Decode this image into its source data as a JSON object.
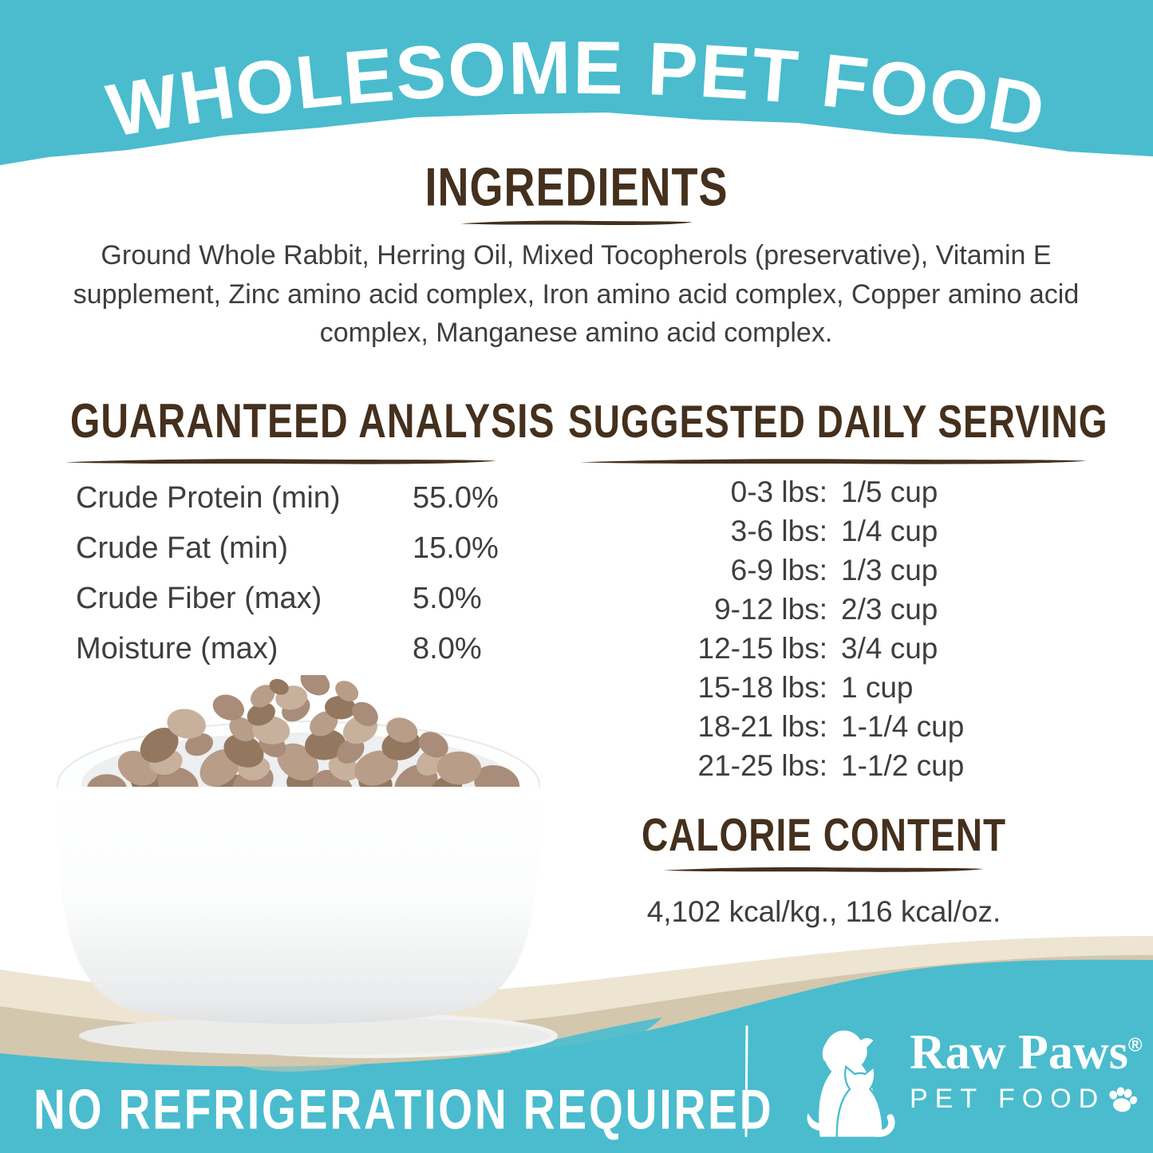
{
  "header": {
    "title": "WHOLESOME PET FOOD"
  },
  "ingredients": {
    "heading": "INGREDIENTS",
    "text": "Ground Whole Rabbit, Herring Oil, Mixed Tocopherols (preservative), Vitamin E supplement, Zinc amino acid complex, Iron amino acid complex, Copper amino acid complex, Manganese amino acid complex."
  },
  "guaranteed_analysis": {
    "heading": "GUARANTEED ANALYSIS",
    "rows": [
      {
        "label": "Crude Protein (min)",
        "value": "55.0%"
      },
      {
        "label": "Crude Fat (min)",
        "value": "15.0%"
      },
      {
        "label": "Crude Fiber (max)",
        "value": "5.0%"
      },
      {
        "label": "Moisture (max)",
        "value": "8.0%"
      }
    ]
  },
  "daily_serving": {
    "heading": "SUGGESTED DAILY SERVING",
    "rows": [
      {
        "weight": "0-3 lbs:",
        "amount": "1/5 cup"
      },
      {
        "weight": "3-6 lbs:",
        "amount": "1/4 cup"
      },
      {
        "weight": "6-9 lbs:",
        "amount": "1/3 cup"
      },
      {
        "weight": "9-12 lbs:",
        "amount": "2/3 cup"
      },
      {
        "weight": "12-15 lbs:",
        "amount": "3/4 cup"
      },
      {
        "weight": "15-18 lbs:",
        "amount": "1 cup"
      },
      {
        "weight": "18-21 lbs:",
        "amount": "1-1/4 cup"
      },
      {
        "weight": "21-25 lbs:",
        "amount": "1-1/2 cup"
      }
    ]
  },
  "calorie_content": {
    "heading": "CALORIE CONTENT",
    "text": "4,102 kcal/kg., 116 kcal/oz."
  },
  "footer": {
    "claim": "NO REFRIGERATION REQUIRED",
    "brand": {
      "name": "Raw Paws",
      "registered": "®",
      "subtitle": "PET FOOD"
    }
  },
  "colors": {
    "teal": "#4ABCCE",
    "brown": "#44301D",
    "cream": "#EDE5D2",
    "tan": "#D3C7AE",
    "text_dark": "#3E3E3E",
    "kibble_palette": [
      "#A98D7A",
      "#B89D89",
      "#93785F",
      "#C7B09C"
    ]
  }
}
